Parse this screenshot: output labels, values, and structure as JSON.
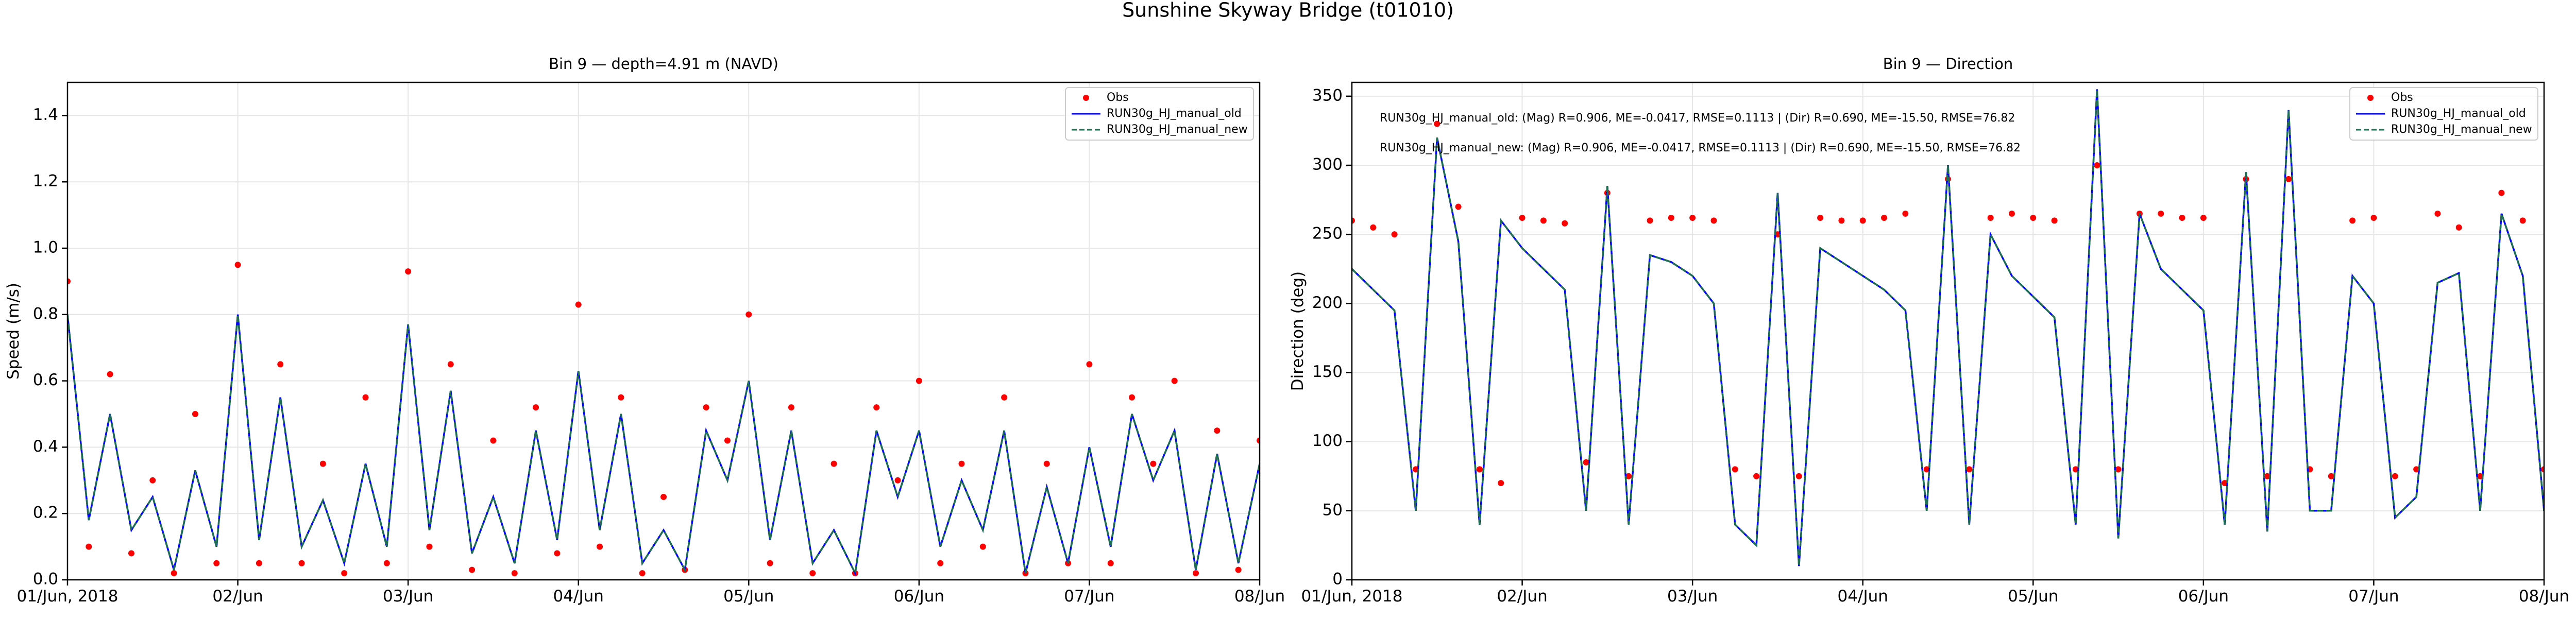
{
  "title": "Sunshine Skyway Bridge (t01010)",
  "chart_data": [
    {
      "type": "line",
      "title": "Bin 9 — depth=4.91 m (NAVD)",
      "ylabel": "Speed (m/s)",
      "grid": true,
      "legend": "upper right",
      "xlim": [
        0,
        7
      ],
      "xticks": [
        {
          "value": 0,
          "label": "01/Jun, 2018"
        },
        {
          "value": 1,
          "label": "02/Jun"
        },
        {
          "value": 2,
          "label": "03/Jun"
        },
        {
          "value": 3,
          "label": "04/Jun"
        },
        {
          "value": 4,
          "label": "05/Jun"
        },
        {
          "value": 5,
          "label": "06/Jun"
        },
        {
          "value": 6,
          "label": "07/Jun"
        },
        {
          "value": 7,
          "label": "08/Jun"
        }
      ],
      "ylim": [
        0,
        1.5
      ],
      "yticks": [
        {
          "value": 0,
          "label": "0.0"
        },
        0.2,
        0.4,
        0.6,
        0.8,
        {
          "value": 1,
          "label": "1.0"
        },
        1.2,
        1.4
      ],
      "x": [
        0,
        0.125,
        0.25,
        0.375,
        0.5,
        0.625,
        0.75,
        0.875,
        1,
        1.125,
        1.25,
        1.375,
        1.5,
        1.625,
        1.75,
        1.875,
        2,
        2.125,
        2.25,
        2.375,
        2.5,
        2.625,
        2.75,
        2.875,
        3,
        3.125,
        3.25,
        3.375,
        3.5,
        3.625,
        3.75,
        3.875,
        4,
        4.125,
        4.25,
        4.375,
        4.5,
        4.625,
        4.75,
        4.875,
        5,
        5.125,
        5.25,
        5.375,
        5.5,
        5.625,
        5.75,
        5.875,
        6,
        6.125,
        6.25,
        6.375,
        6.5,
        6.625,
        6.75,
        6.875,
        7
      ],
      "series": [
        {
          "name": "Obs",
          "type": "scatter",
          "color": "#ff0000",
          "values": [
            0.9,
            0.1,
            0.62,
            0.08,
            0.3,
            0.02,
            0.5,
            0.05,
            0.95,
            0.05,
            0.65,
            0.05,
            0.35,
            0.02,
            0.55,
            0.05,
            0.93,
            0.1,
            0.65,
            0.03,
            0.42,
            0.02,
            0.52,
            0.08,
            0.83,
            0.1,
            0.55,
            0.02,
            0.25,
            0.03,
            0.52,
            0.42,
            0.8,
            0.05,
            0.52,
            0.02,
            0.35,
            0.02,
            0.52,
            0.3,
            0.6,
            0.05,
            0.35,
            0.1,
            0.55,
            0.02,
            0.35,
            0.05,
            0.65,
            0.05,
            0.55,
            0.35,
            0.6,
            0.02,
            0.45,
            0.03,
            0.42
          ]
        },
        {
          "name": "RUN30g_HJ_manual_old",
          "type": "line",
          "color": "#0000ff",
          "values": [
            0.8,
            0.18,
            0.5,
            0.15,
            0.25,
            0.03,
            0.33,
            0.1,
            0.8,
            0.12,
            0.55,
            0.1,
            0.24,
            0.05,
            0.35,
            0.1,
            0.77,
            0.15,
            0.57,
            0.08,
            0.25,
            0.05,
            0.45,
            0.12,
            0.63,
            0.15,
            0.5,
            0.05,
            0.15,
            0.03,
            0.45,
            0.3,
            0.6,
            0.12,
            0.45,
            0.05,
            0.15,
            0.02,
            0.45,
            0.25,
            0.45,
            0.1,
            0.3,
            0.15,
            0.45,
            0.02,
            0.28,
            0.05,
            0.4,
            0.1,
            0.5,
            0.3,
            0.45,
            0.03,
            0.38,
            0.05,
            0.35
          ]
        },
        {
          "name": "RUN30g_HJ_manual_new",
          "type": "line",
          "dashed": true,
          "color": "#1f6f50",
          "values": [
            0.8,
            0.18,
            0.5,
            0.15,
            0.25,
            0.03,
            0.33,
            0.1,
            0.8,
            0.12,
            0.55,
            0.1,
            0.24,
            0.05,
            0.35,
            0.1,
            0.77,
            0.15,
            0.57,
            0.08,
            0.25,
            0.05,
            0.45,
            0.12,
            0.63,
            0.15,
            0.5,
            0.05,
            0.15,
            0.03,
            0.45,
            0.3,
            0.6,
            0.12,
            0.45,
            0.05,
            0.15,
            0.02,
            0.45,
            0.25,
            0.45,
            0.1,
            0.3,
            0.15,
            0.45,
            0.02,
            0.28,
            0.05,
            0.4,
            0.1,
            0.5,
            0.3,
            0.45,
            0.03,
            0.38,
            0.05,
            0.35
          ]
        }
      ]
    },
    {
      "type": "line",
      "title": "Bin 9 — Direction",
      "ylabel": "Direction (deg)",
      "grid": true,
      "legend": "upper right",
      "xlim": [
        0,
        7
      ],
      "xticks": [
        {
          "value": 0,
          "label": "01/Jun, 2018"
        },
        {
          "value": 1,
          "label": "02/Jun"
        },
        {
          "value": 2,
          "label": "03/Jun"
        },
        {
          "value": 3,
          "label": "04/Jun"
        },
        {
          "value": 4,
          "label": "05/Jun"
        },
        {
          "value": 5,
          "label": "06/Jun"
        },
        {
          "value": 6,
          "label": "07/Jun"
        },
        {
          "value": 7,
          "label": "08/Jun"
        }
      ],
      "ylim": [
        0,
        360
      ],
      "yticks": [
        0,
        50,
        100,
        150,
        200,
        250,
        300,
        350
      ],
      "annotations": [
        "RUN30g_HJ_manual_old: (Mag) R=0.906, ME=-0.0417, RMSE=0.1113 | (Dir) R=0.690, ME=-15.50, RMSE=76.82",
        "RUN30g_HJ_manual_new: (Mag) R=0.906, ME=-0.0417, RMSE=0.1113 | (Dir) R=0.690, ME=-15.50, RMSE=76.82"
      ],
      "x": [
        0,
        0.125,
        0.25,
        0.375,
        0.5,
        0.625,
        0.75,
        0.875,
        1,
        1.125,
        1.25,
        1.375,
        1.5,
        1.625,
        1.75,
        1.875,
        2,
        2.125,
        2.25,
        2.375,
        2.5,
        2.625,
        2.75,
        2.875,
        3,
        3.125,
        3.25,
        3.375,
        3.5,
        3.625,
        3.75,
        3.875,
        4,
        4.125,
        4.25,
        4.375,
        4.5,
        4.625,
        4.75,
        4.875,
        5,
        5.125,
        5.25,
        5.375,
        5.5,
        5.625,
        5.75,
        5.875,
        6,
        6.125,
        6.25,
        6.375,
        6.5,
        6.625,
        6.75,
        6.875,
        7
      ],
      "series": [
        {
          "name": "Obs",
          "type": "scatter",
          "color": "#ff0000",
          "values": [
            260,
            255,
            250,
            80,
            330,
            270,
            80,
            70,
            262,
            260,
            258,
            85,
            280,
            75,
            260,
            262,
            262,
            260,
            80,
            75,
            250,
            75,
            262,
            260,
            260,
            262,
            265,
            80,
            290,
            80,
            262,
            265,
            262,
            260,
            80,
            300,
            80,
            265,
            265,
            262,
            262,
            70,
            290,
            75,
            290,
            80,
            75,
            260,
            262,
            75,
            80,
            265,
            255,
            75,
            280,
            260,
            80
          ]
        },
        {
          "name": "RUN30g_HJ_manual_old",
          "type": "line",
          "color": "#0000ff",
          "values": [
            225,
            210,
            195,
            50,
            320,
            245,
            40,
            260,
            240,
            225,
            210,
            50,
            285,
            40,
            235,
            230,
            220,
            200,
            40,
            25,
            280,
            10,
            240,
            230,
            220,
            210,
            195,
            50,
            300,
            40,
            250,
            220,
            205,
            190,
            40,
            355,
            30,
            265,
            225,
            210,
            195,
            40,
            295,
            35,
            340,
            50,
            50,
            220,
            200,
            45,
            60,
            215,
            222,
            50,
            265,
            220,
            50
          ]
        },
        {
          "name": "RUN30g_HJ_manual_new",
          "type": "line",
          "dashed": true,
          "color": "#1f6f50",
          "values": [
            225,
            210,
            195,
            50,
            320,
            245,
            40,
            260,
            240,
            225,
            210,
            50,
            285,
            40,
            235,
            230,
            220,
            200,
            40,
            25,
            280,
            10,
            240,
            230,
            220,
            210,
            195,
            50,
            300,
            40,
            250,
            220,
            205,
            190,
            40,
            355,
            30,
            265,
            225,
            210,
            195,
            40,
            295,
            35,
            340,
            50,
            50,
            220,
            200,
            45,
            60,
            215,
            222,
            50,
            265,
            220,
            50
          ]
        }
      ]
    }
  ]
}
